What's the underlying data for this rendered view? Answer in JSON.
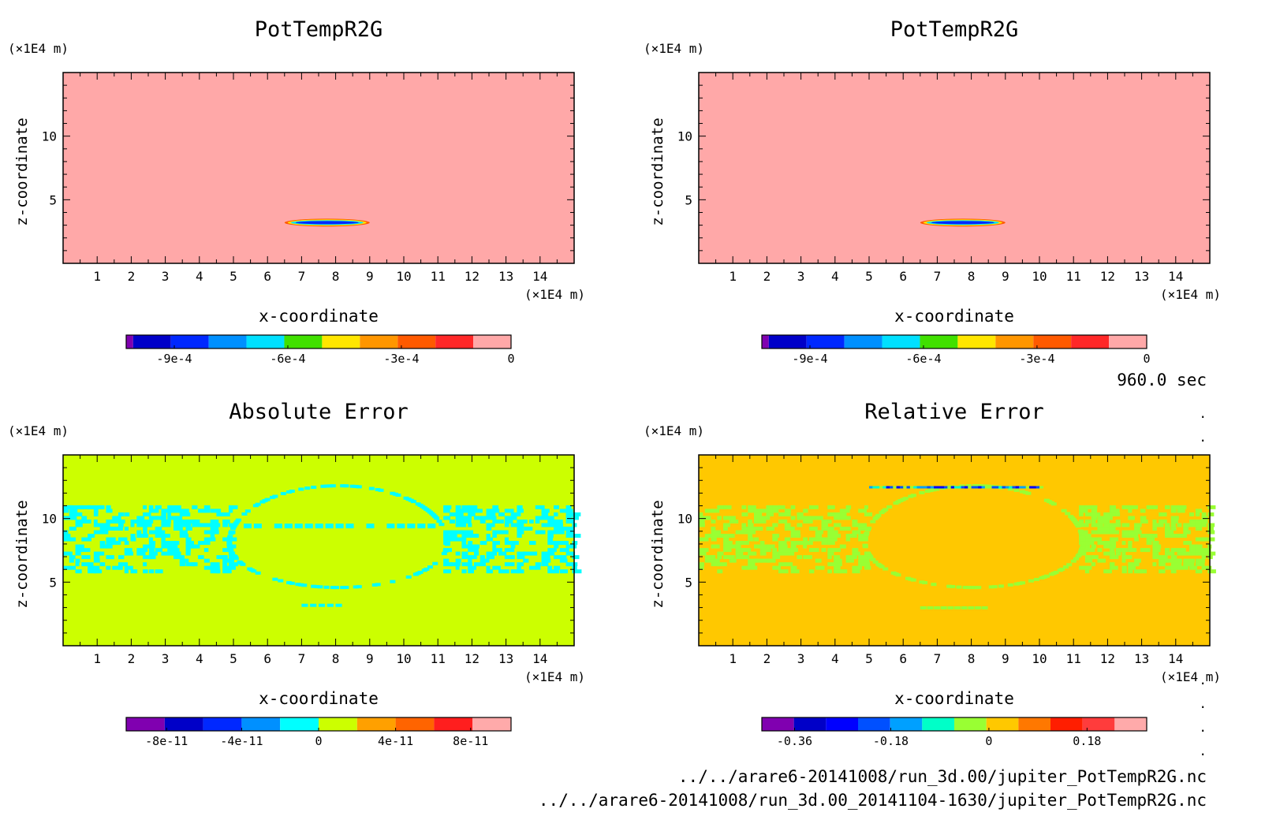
{
  "time_label": "960.0 sec",
  "file_paths": [
    "../../arare6-20141008/run_3d.00/jupiter_PotTempR2G.nc",
    "../../arare6-20141008/run_3d.00_20141104-1630/jupiter_PotTempR2G.nc"
  ],
  "chart_data": [
    {
      "type": "heatmap",
      "title": "PotTempR2G",
      "xlabel": "x-coordinate",
      "ylabel": "z-coordinate",
      "x_unit": "(×1E4 m)",
      "y_unit": "(×1E4 m)",
      "xlim": [
        0,
        15
      ],
      "ylim": [
        0,
        15
      ],
      "x_ticks": [
        "1",
        "2",
        "3",
        "4",
        "5",
        "6",
        "7",
        "8",
        "9",
        "10",
        "11",
        "12",
        "13",
        "14"
      ],
      "y_ticks": [
        "5",
        "10"
      ],
      "background_color": "#ffa8a8",
      "feature": "thin negative anomaly band near x 6.5-9, z 3",
      "colorbar": {
        "colors": [
          "#8000b0",
          "#0000c8",
          "#0028ff",
          "#0090ff",
          "#00e0ff",
          "#40e000",
          "#ffe600",
          "#ff9600",
          "#ff5a00",
          "#ff2828",
          "#ffa8a8"
        ],
        "tick_labels": [
          "-9e-4",
          "-6e-4",
          "-3e-4",
          "0"
        ]
      }
    },
    {
      "type": "heatmap",
      "title": "PotTempR2G",
      "xlabel": "x-coordinate",
      "ylabel": "z-coordinate",
      "x_unit": "(×1E4 m)",
      "y_unit": "(×1E4 m)",
      "xlim": [
        0,
        15
      ],
      "ylim": [
        0,
        15
      ],
      "x_ticks": [
        "1",
        "2",
        "3",
        "4",
        "5",
        "6",
        "7",
        "8",
        "9",
        "10",
        "11",
        "12",
        "13",
        "14"
      ],
      "y_ticks": [
        "5",
        "10"
      ],
      "background_color": "#ffa8a8",
      "feature": "thin negative anomaly band near x 6.5-9, z 3",
      "colorbar": {
        "colors": [
          "#8000b0",
          "#0000c8",
          "#0028ff",
          "#0090ff",
          "#00e0ff",
          "#40e000",
          "#ffe600",
          "#ff9600",
          "#ff5a00",
          "#ff2828",
          "#ffa8a8"
        ],
        "tick_labels": [
          "-9e-4",
          "-6e-4",
          "-3e-4",
          "0"
        ]
      }
    },
    {
      "type": "heatmap",
      "title": "Absolute Error",
      "xlabel": "x-coordinate",
      "ylabel": "z-coordinate",
      "x_unit": "(×1E4 m)",
      "y_unit": "(×1E4 m)",
      "xlim": [
        0,
        15
      ],
      "ylim": [
        0,
        15
      ],
      "x_ticks": [
        "1",
        "2",
        "3",
        "4",
        "5",
        "6",
        "7",
        "8",
        "9",
        "10",
        "11",
        "12",
        "13",
        "14"
      ],
      "y_ticks": [
        "5",
        "10"
      ],
      "background_color": "#ccff00",
      "noise_color": "#00ffff",
      "feature": "noisy band z 6-11 outside x 5-11, arc of patches in center",
      "colorbar": {
        "colors": [
          "#8000b0",
          "#0000c8",
          "#0028ff",
          "#0090ff",
          "#00ffff",
          "#ccff00",
          "#ffa000",
          "#ff6400",
          "#ff1e1e",
          "#ffaaaa"
        ],
        "tick_labels": [
          "-8e-11",
          "-4e-11",
          "0",
          "4e-11",
          "8e-11"
        ]
      }
    },
    {
      "type": "heatmap",
      "title": "Relative Error",
      "xlabel": "x-coordinate",
      "ylabel": "z-coordinate",
      "x_unit": "(×1E4 m)",
      "y_unit": "(×1E4 m)",
      "xlim": [
        0,
        15
      ],
      "ylim": [
        0,
        15
      ],
      "x_ticks": [
        "1",
        "2",
        "3",
        "4",
        "5",
        "6",
        "7",
        "8",
        "9",
        "10",
        "11",
        "12",
        "13",
        "14"
      ],
      "y_ticks": [
        "5",
        "10"
      ],
      "background_color": "#ffc800",
      "noise_color": "#99ff33",
      "feature": "noisy band z 6-11 outside x 5-11, thin band near z 12.5",
      "colorbar": {
        "colors": [
          "#8000b0",
          "#0000c8",
          "#0000ff",
          "#0050ff",
          "#00a0ff",
          "#00ffc8",
          "#99ff33",
          "#ffc800",
          "#ff7800",
          "#ff1e00",
          "#ff3c3c",
          "#ffaaaa"
        ],
        "tick_labels": [
          "-0.36",
          "-0.18",
          "0",
          "0.18"
        ]
      }
    }
  ]
}
